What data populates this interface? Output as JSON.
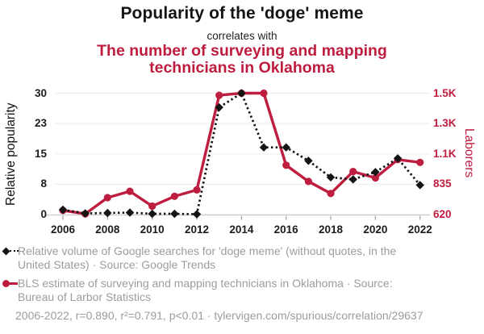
{
  "header": {
    "title": "Popularity of the 'doge' meme",
    "connector": "correlates with",
    "subtitle": "The number of surveying and mapping technicians in Oklahoma"
  },
  "colors": {
    "red": "#bf1d3f",
    "ink": "#141414",
    "muted": "#9c9c9c",
    "grid": "#efefef",
    "axis_line": "#cccccc",
    "tick_mark": "#a6a6a6"
  },
  "chart_data": {
    "type": "line",
    "x": [
      2006,
      2007,
      2008,
      2009,
      2010,
      2011,
      2012,
      2013,
      2014,
      2015,
      2016,
      2017,
      2018,
      2019,
      2020,
      2021,
      2022
    ],
    "x_tick_labels": [
      "2006",
      "2008",
      "2010",
      "2012",
      "2014",
      "2016",
      "2018",
      "2020",
      "2022"
    ],
    "left_axis": {
      "label": "Relative popularity",
      "tick_labels": [
        "30",
        "23",
        "15",
        "8",
        "0"
      ],
      "tick_values": [
        30,
        22.5,
        15,
        7.5,
        0
      ],
      "range": [
        0,
        30
      ]
    },
    "right_axis": {
      "label": "Laborers",
      "tick_labels": [
        "1.5K",
        "1.3K",
        "1.1K",
        "835",
        "620"
      ],
      "tick_values": [
        1480,
        1265,
        1050,
        835,
        620
      ],
      "range": [
        620,
        1480
      ]
    },
    "grid": "horizontal-only",
    "series": [
      {
        "name": "doge-meme-google-trends",
        "axis": "left",
        "color": "#141414",
        "line": "dotted",
        "marker": "diamond",
        "values": [
          1.2,
          0.3,
          0.4,
          0.5,
          0.2,
          0.2,
          0.1,
          26.5,
          30,
          16.6,
          16.6,
          13.3,
          9.2,
          8.7,
          10.5,
          13.9,
          7.3
        ]
      },
      {
        "name": "surveying-mapping-technicians-oklahoma",
        "axis": "right",
        "color": "#bf1d3f",
        "line": "solid",
        "marker": "circle",
        "values": [
          650,
          625,
          740,
          785,
          680,
          750,
          795,
          1465,
          1480,
          1480,
          970,
          855,
          770,
          925,
          880,
          1010,
          990
        ]
      }
    ]
  },
  "legend": [
    {
      "marker": "black-diamond-dotted",
      "text": "Relative volume of Google searches for 'doge meme' (without quotes, in the United States) · Source: Google Trends"
    },
    {
      "marker": "red-circle-solid",
      "text": "BLS estimate of surveying and mapping technicians in Oklahoma · Source: Bureau of Larbor Statistics"
    }
  ],
  "footer": {
    "text": "2006-2022, r=0.890, r²=0.791, p<0.01 · tylervigen.com/spurious/correlation/29637"
  }
}
